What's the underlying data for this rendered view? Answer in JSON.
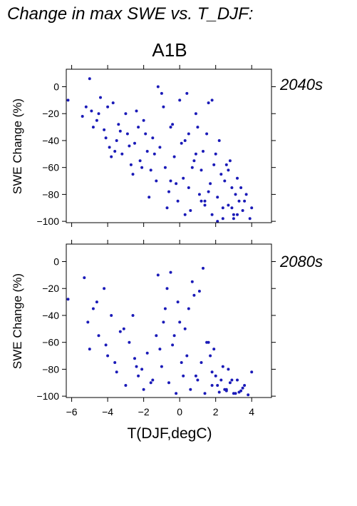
{
  "figure": {
    "title": "Change in max SWE vs. T_DJF:",
    "scenario": "A1B",
    "xlabel": "T(DJF,degC)"
  },
  "colors": {
    "points": "#1a1ab8",
    "period_label": "#2a2ab0",
    "frame": "#000000"
  },
  "chart_data": [
    {
      "type": "scatter",
      "period": "2040s",
      "ylabel": "SWE Change (%)",
      "xlim": [
        -6.3,
        5.1
      ],
      "ylim": [
        -101,
        13
      ],
      "xticks": [
        -6,
        -4,
        -2,
        0,
        2,
        4
      ],
      "yticks": [
        0,
        -20,
        -40,
        -60,
        -80,
        -100
      ],
      "grid": false,
      "x": [
        -6.2,
        -5.4,
        -5.0,
        -4.9,
        -4.6,
        -4.4,
        -4.2,
        -4.0,
        -3.9,
        -3.7,
        -3.5,
        -3.4,
        -3.2,
        -3.0,
        -2.9,
        -2.7,
        -2.5,
        -2.3,
        -2.2,
        -2.0,
        -1.8,
        -1.6,
        -1.5,
        -1.3,
        -1.1,
        -1.0,
        -0.8,
        -0.6,
        -0.5,
        -0.3,
        -0.1,
        0.0,
        0.2,
        0.3,
        0.5,
        0.6,
        0.8,
        0.9,
        1.1,
        1.2,
        1.4,
        1.5,
        1.7,
        1.8,
        2.0,
        2.1,
        2.3,
        2.4,
        2.6,
        2.7,
        2.9,
        3.0,
        3.2,
        3.3,
        3.5,
        3.7,
        3.9,
        4.0,
        -5.2,
        -4.8,
        -4.5,
        -4.1,
        -3.8,
        -3.3,
        -2.8,
        -2.4,
        -1.9,
        -1.4,
        -0.9,
        -0.4,
        0.1,
        0.4,
        0.7,
        1.0,
        1.3,
        1.6,
        1.9,
        2.2,
        2.5,
        2.8,
        3.1,
        3.4,
        -2.6,
        -1.7,
        -0.7,
        0.3,
        1.2,
        2.1,
        3.0,
        -0.2,
        0.9,
        1.8,
        2.7,
        3.6,
        -1.2,
        0.5,
        1.6,
        2.4,
        3.2,
        -3.6,
        -2.1,
        -0.5,
        1.4,
        2.9
      ],
      "y": [
        -10,
        -22,
        6,
        -18,
        -25,
        -8,
        -32,
        -15,
        -45,
        -12,
        -40,
        -28,
        -50,
        -20,
        -35,
        -58,
        -42,
        -30,
        -55,
        -25,
        -48,
        -62,
        -38,
        -70,
        -45,
        -5,
        -60,
        -78,
        -30,
        -52,
        -85,
        -10,
        -68,
        -40,
        -75,
        -92,
        -55,
        -20,
        -80,
        -62,
        -88,
        -35,
        -72,
        -95,
        -50,
        -82,
        -65,
        -98,
        -58,
        -88,
        -75,
        -95,
        -68,
        -85,
        -92,
        -80,
        -98,
        -90,
        -15,
        -30,
        -20,
        -38,
        -52,
        -33,
        -44,
        -18,
        -35,
        -50,
        -15,
        -28,
        -42,
        -5,
        -60,
        -30,
        -48,
        -12,
        -58,
        -40,
        -70,
        -55,
        -80,
        -75,
        -65,
        -82,
        -90,
        -95,
        -85,
        -100,
        -98,
        -72,
        -50,
        -10,
        -62,
        -85,
        0,
        -35,
        -78,
        -90,
        -95,
        -48,
        -60,
        -70,
        -85,
        -90
      ]
    },
    {
      "type": "scatter",
      "period": "2080s",
      "ylabel": "SWE Change (%)",
      "xlim": [
        -6.3,
        5.1
      ],
      "ylim": [
        -101,
        13
      ],
      "xticks": [
        -6,
        -4,
        -2,
        0,
        2,
        4
      ],
      "yticks": [
        0,
        -20,
        -40,
        -60,
        -80,
        -100
      ],
      "grid": false,
      "x": [
        -6.2,
        -5.3,
        -5.0,
        -4.8,
        -4.5,
        -4.2,
        -4.0,
        -3.8,
        -3.5,
        -3.3,
        -3.0,
        -2.8,
        -2.5,
        -2.3,
        -2.0,
        -1.8,
        -1.5,
        -1.3,
        -1.0,
        -0.8,
        -0.6,
        -0.4,
        -0.2,
        0.0,
        0.2,
        0.4,
        0.6,
        0.8,
        1.0,
        1.2,
        1.4,
        1.6,
        1.8,
        2.0,
        2.2,
        2.4,
        2.6,
        2.8,
        3.0,
        3.2,
        3.4,
        3.6,
        4.0,
        -5.1,
        -4.6,
        -4.1,
        -3.6,
        -3.1,
        -2.6,
        -2.1,
        -1.6,
        -1.1,
        -0.7,
        -0.3,
        0.1,
        0.5,
        0.9,
        1.3,
        1.7,
        2.1,
        2.5,
        2.9,
        3.3,
        -1.2,
        -0.5,
        0.3,
        1.1,
        1.9,
        2.7,
        3.5,
        -0.9,
        0.7,
        1.5,
        2.3,
        3.1,
        -2.4,
        -0.1,
        1.8,
        2.6,
        3.8
      ],
      "y": [
        -28,
        -12,
        -65,
        -35,
        -55,
        -20,
        -70,
        -40,
        -82,
        -52,
        -92,
        -60,
        -72,
        -85,
        -95,
        -68,
        -88,
        -55,
        -78,
        -35,
        -90,
        -62,
        -98,
        -45,
        -85,
        -70,
        -95,
        -25,
        -88,
        -75,
        -98,
        -60,
        -92,
        -85,
        -97,
        -78,
        -95,
        -90,
        -98,
        -88,
        -96,
        -92,
        -82,
        -45,
        -30,
        -62,
        -75,
        -50,
        -40,
        -80,
        -90,
        -65,
        -20,
        -55,
        -75,
        -35,
        -85,
        -5,
        -70,
        -92,
        -95,
        -88,
        -97,
        -10,
        -8,
        -50,
        -22,
        -65,
        -80,
        -94,
        -45,
        -15,
        -60,
        -88,
        -98,
        -78,
        -30,
        -82,
        -96,
        -99
      ]
    }
  ]
}
